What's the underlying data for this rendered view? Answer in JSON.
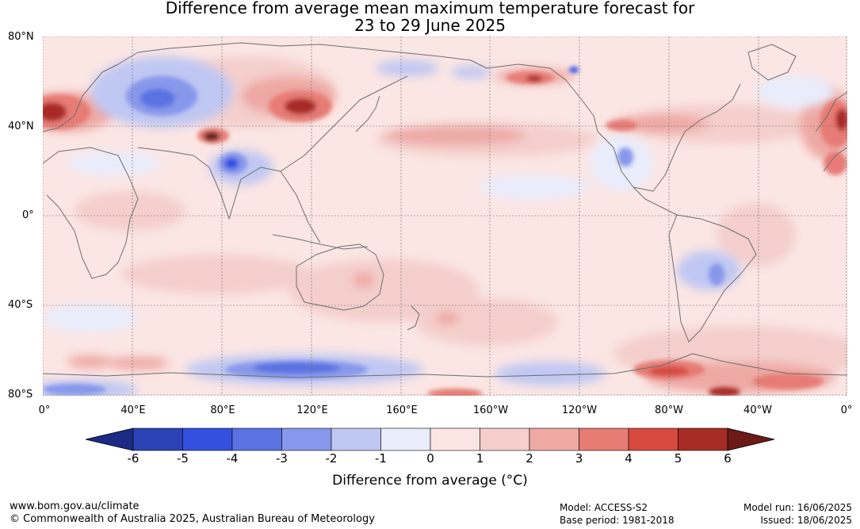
{
  "title_line1": "Difference from average mean maximum temperature forecast for",
  "title_line2": "23 to 29 June 2025",
  "lat_labels": [
    "80°N",
    "40°N",
    "0°",
    "40°S",
    "80°S"
  ],
  "lon_labels": [
    "0°",
    "40°E",
    "80°E",
    "120°E",
    "160°E",
    "160°W",
    "120°W",
    "80°W",
    "40°W",
    "0°"
  ],
  "colorbar": {
    "ticks": [
      "-6",
      "-5",
      "-4",
      "-3",
      "-2",
      "-1",
      "0",
      "1",
      "2",
      "3",
      "4",
      "5",
      "6"
    ],
    "colors": [
      "#1b2a85",
      "#2b42b4",
      "#3350e0",
      "#5a72e2",
      "#8797eb",
      "#bfc7f3",
      "#e8ecfb",
      "#fbe6e4",
      "#f4cfcc",
      "#eea9a4",
      "#e67c74",
      "#d64a3f",
      "#a82c26",
      "#6b1a17"
    ],
    "title": "Difference from average (°C)"
  },
  "footer": {
    "website": "www.bom.gov.au/climate",
    "copyright": "© Commonwealth of Australia 2025, Australian Bureau of Meteorology",
    "model": "Model: ACCESS-S2",
    "base_period": "Base period: 1981-2018",
    "model_run": "Model run: 16/06/2025",
    "issued": "Issued: 18/06/2025"
  }
}
